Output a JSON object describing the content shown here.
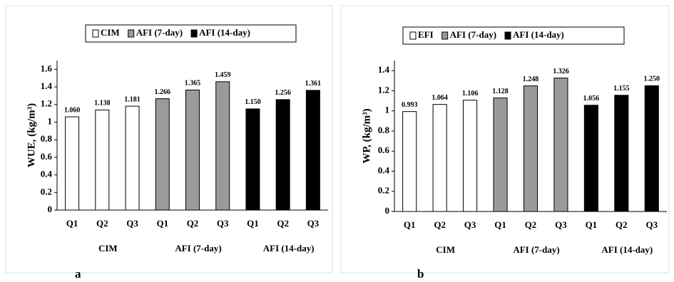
{
  "chart_data": [
    {
      "type": "bar",
      "panel": "a",
      "ylabel": "WUE, (kg/m³)",
      "categories": [
        "Q1",
        "Q2",
        "Q3",
        "Q1",
        "Q2",
        "Q3",
        "Q1",
        "Q2",
        "Q3"
      ],
      "groups": [
        "CIM",
        "AFI (7-day)",
        "AFI (14-day)"
      ],
      "series": [
        {
          "name": "CIM",
          "color": "#ffffff",
          "values": [
            1.06,
            1.138,
            1.181,
            null,
            null,
            null,
            null,
            null,
            null
          ],
          "value_labels": [
            "1.060",
            "1.138",
            "1.181",
            null,
            null,
            null,
            null,
            null,
            null
          ]
        },
        {
          "name": "AFI (7-day)",
          "color": "#9a9a9a",
          "values": [
            null,
            null,
            null,
            1.266,
            1.365,
            1.459,
            null,
            null,
            null
          ],
          "value_labels": [
            null,
            null,
            null,
            "1.266",
            "1.365",
            "1.459",
            null,
            null,
            null
          ]
        },
        {
          "name": "AFI (14-day)",
          "color": "#000000",
          "values": [
            null,
            null,
            null,
            null,
            null,
            null,
            1.15,
            1.256,
            1.361
          ],
          "value_labels": [
            null,
            null,
            null,
            null,
            null,
            null,
            "1.150",
            "1.256",
            "1.361"
          ]
        }
      ],
      "ylim": [
        0,
        1.7
      ],
      "yticks": [
        0,
        0.2,
        0.4,
        0.6,
        0.8,
        1,
        1.2,
        1.4,
        1.6
      ],
      "legend": "top"
    },
    {
      "type": "bar",
      "panel": "b",
      "ylabel": "WP, (kg/m³)",
      "categories": [
        "Q1",
        "Q2",
        "Q3",
        "Q1",
        "Q2",
        "Q3",
        "Q1",
        "Q2",
        "Q3"
      ],
      "groups": [
        "CIM",
        "AFI (7-day)",
        "AFI (14-day)"
      ],
      "series": [
        {
          "name": "EFI",
          "color": "#ffffff",
          "values": [
            0.993,
            1.064,
            1.106,
            null,
            null,
            null,
            null,
            null,
            null
          ],
          "value_labels": [
            "0.993",
            "1.064",
            "1.106",
            null,
            null,
            null,
            null,
            null,
            null
          ]
        },
        {
          "name": "AFI (7-day)",
          "color": "#9a9a9a",
          "values": [
            null,
            null,
            null,
            1.128,
            1.248,
            1.326,
            null,
            null,
            null
          ],
          "value_labels": [
            null,
            null,
            null,
            "1.128",
            "1.248",
            "1.326",
            null,
            null,
            null
          ]
        },
        {
          "name": "AFI (14-day)",
          "color": "#000000",
          "values": [
            null,
            null,
            null,
            null,
            null,
            null,
            1.056,
            1.155,
            1.25
          ],
          "value_labels": [
            null,
            null,
            null,
            null,
            null,
            null,
            "1.056",
            "1.155",
            "1.250"
          ]
        }
      ],
      "ylim": [
        0,
        1.5
      ],
      "yticks": [
        0,
        0.2,
        0.4,
        0.6,
        0.8,
        1,
        1.2,
        1.4
      ],
      "legend": "top"
    }
  ]
}
